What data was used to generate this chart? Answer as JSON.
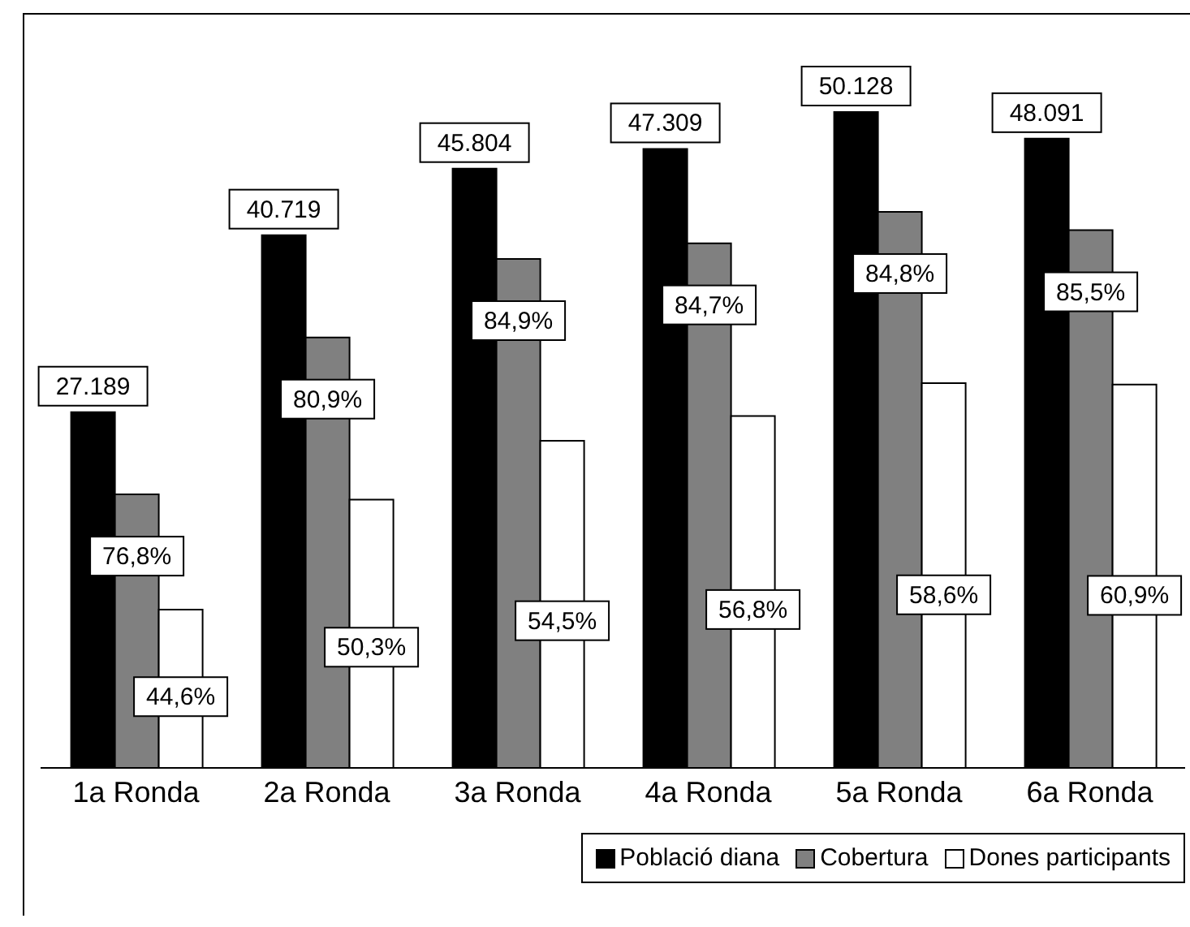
{
  "chart_data": {
    "type": "bar",
    "categories": [
      "1a Ronda",
      "2a Ronda",
      "3a Ronda",
      "4a Ronda",
      "5a Ronda",
      "6a Ronda"
    ],
    "series": [
      {
        "name": "Població diana",
        "color": "#000000",
        "values": [
          27189,
          40719,
          45804,
          47309,
          50128,
          48091
        ],
        "value_labels": [
          "27.189",
          "40.719",
          "45.804",
          "47.309",
          "50.128",
          "48.091"
        ]
      },
      {
        "name": "Cobertura",
        "color": "#808080",
        "values": [
          20900,
          32900,
          38900,
          40100,
          42500,
          41100
        ]
      },
      {
        "name": "Dones participants",
        "color": "#ffffff",
        "values": [
          12100,
          20500,
          25000,
          26900,
          29400,
          29300
        ]
      }
    ],
    "annotations": [
      "76,8%",
      "80,9%",
      "84,9%",
      "84,7%",
      "84,8%",
      "85,5%",
      "44,6%",
      "50,3%",
      "54,5%",
      "56,8%",
      "58,6%",
      "60,9%"
    ],
    "legend": "bottom right",
    "grid": false
  }
}
